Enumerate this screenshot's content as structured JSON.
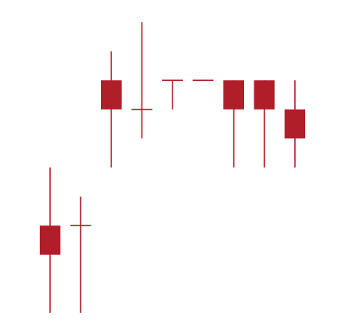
{
  "chart_data": {
    "type": "candlestick",
    "color": "#b01e2a",
    "ylim": [
      0,
      10
    ],
    "open": [
      3,
      3,
      8,
      7,
      8,
      8,
      8,
      8,
      7
    ],
    "high": [
      5,
      4,
      9,
      10,
      8,
      8,
      8,
      8,
      8
    ],
    "low": [
      0,
      0,
      5,
      6,
      7,
      8,
      5,
      5,
      5
    ],
    "close": [
      2,
      3,
      7,
      7,
      8,
      8,
      7,
      7,
      6
    ]
  }
}
